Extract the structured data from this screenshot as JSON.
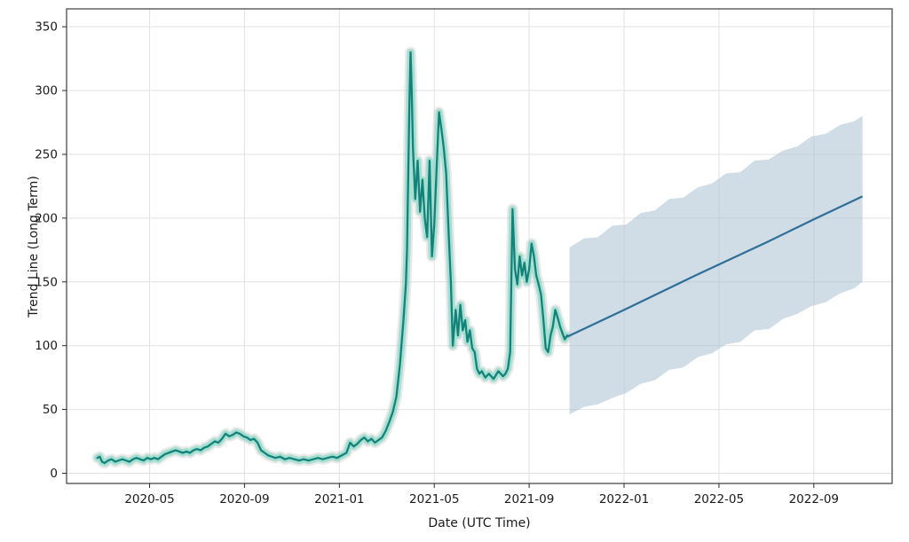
{
  "chart_data": {
    "type": "line",
    "title": "",
    "xlabel": "Date (UTC Time)",
    "ylabel": "Trend Line (Long Term)",
    "x_unit": "months since 2020-01",
    "xlim": [
      0.5,
      35.3
    ],
    "ylim": [
      -8,
      364
    ],
    "grid": true,
    "legend": "none",
    "x_ticks": [
      {
        "m": 4,
        "label": "2020-05"
      },
      {
        "m": 8,
        "label": "2020-09"
      },
      {
        "m": 12,
        "label": "2021-01"
      },
      {
        "m": 16,
        "label": "2021-05"
      },
      {
        "m": 20,
        "label": "2021-09"
      },
      {
        "m": 24,
        "label": "2022-01"
      },
      {
        "m": 28,
        "label": "2022-05"
      },
      {
        "m": 32,
        "label": "2022-09"
      }
    ],
    "y_ticks": [
      0,
      50,
      100,
      150,
      200,
      250,
      300,
      350
    ],
    "style": {
      "background": "#ffffff",
      "grid_color": "#e2e2e2",
      "frame_color": "#2b2b2b",
      "tick_text_color": "#1a1a1a",
      "history_line_color": "#12837a",
      "history_glow_color": "#6fd6bd",
      "history_outer_glow_color": "#c8c8c8",
      "forecast_line_color": "#2e6e99",
      "band_fill_color": "#a9bfd1"
    },
    "series": [
      {
        "name": "history",
        "kind": "line-with-glow",
        "points": [
          [
            1.8,
            12
          ],
          [
            1.9,
            13
          ],
          [
            2.0,
            9
          ],
          [
            2.1,
            8
          ],
          [
            2.25,
            10
          ],
          [
            2.4,
            11
          ],
          [
            2.55,
            9
          ],
          [
            2.7,
            10
          ],
          [
            2.85,
            11
          ],
          [
            3.0,
            10
          ],
          [
            3.15,
            9
          ],
          [
            3.3,
            11
          ],
          [
            3.45,
            12
          ],
          [
            3.6,
            11
          ],
          [
            3.75,
            10
          ],
          [
            3.9,
            12
          ],
          [
            4.05,
            11
          ],
          [
            4.2,
            12
          ],
          [
            4.35,
            11
          ],
          [
            4.5,
            13
          ],
          [
            4.65,
            15
          ],
          [
            4.8,
            16
          ],
          [
            4.95,
            17
          ],
          [
            5.1,
            18
          ],
          [
            5.25,
            17
          ],
          [
            5.4,
            16
          ],
          [
            5.55,
            17
          ],
          [
            5.7,
            16
          ],
          [
            5.85,
            18
          ],
          [
            6.0,
            19
          ],
          [
            6.15,
            18
          ],
          [
            6.3,
            20
          ],
          [
            6.45,
            21
          ],
          [
            6.6,
            23
          ],
          [
            6.75,
            25
          ],
          [
            6.9,
            24
          ],
          [
            7.05,
            27
          ],
          [
            7.2,
            31
          ],
          [
            7.35,
            29
          ],
          [
            7.5,
            30
          ],
          [
            7.65,
            32
          ],
          [
            7.8,
            31
          ],
          [
            7.95,
            29
          ],
          [
            8.1,
            28
          ],
          [
            8.25,
            26
          ],
          [
            8.4,
            27
          ],
          [
            8.55,
            24
          ],
          [
            8.7,
            18
          ],
          [
            8.85,
            16
          ],
          [
            9.0,
            14
          ],
          [
            9.15,
            13
          ],
          [
            9.3,
            12
          ],
          [
            9.5,
            13
          ],
          [
            9.7,
            11
          ],
          [
            9.9,
            12
          ],
          [
            10.1,
            11
          ],
          [
            10.3,
            10
          ],
          [
            10.5,
            11
          ],
          [
            10.7,
            10
          ],
          [
            10.9,
            11
          ],
          [
            11.1,
            12
          ],
          [
            11.3,
            11
          ],
          [
            11.5,
            12
          ],
          [
            11.7,
            13
          ],
          [
            11.9,
            12
          ],
          [
            12.1,
            14
          ],
          [
            12.3,
            16
          ],
          [
            12.45,
            24
          ],
          [
            12.6,
            21
          ],
          [
            12.75,
            23
          ],
          [
            12.9,
            26
          ],
          [
            13.05,
            28
          ],
          [
            13.2,
            25
          ],
          [
            13.35,
            27
          ],
          [
            13.5,
            24
          ],
          [
            13.65,
            26
          ],
          [
            13.8,
            28
          ],
          [
            13.95,
            33
          ],
          [
            14.1,
            40
          ],
          [
            14.25,
            48
          ],
          [
            14.4,
            60
          ],
          [
            14.55,
            85
          ],
          [
            14.7,
            120
          ],
          [
            14.8,
            148
          ],
          [
            14.85,
            175
          ],
          [
            14.9,
            230
          ],
          [
            14.95,
            290
          ],
          [
            15.0,
            330
          ],
          [
            15.05,
            300
          ],
          [
            15.1,
            255
          ],
          [
            15.2,
            215
          ],
          [
            15.3,
            245
          ],
          [
            15.4,
            205
          ],
          [
            15.5,
            230
          ],
          [
            15.6,
            200
          ],
          [
            15.7,
            185
          ],
          [
            15.8,
            245
          ],
          [
            15.9,
            170
          ],
          [
            16.0,
            195
          ],
          [
            16.1,
            240
          ],
          [
            16.2,
            283
          ],
          [
            16.3,
            270
          ],
          [
            16.4,
            255
          ],
          [
            16.5,
            235
          ],
          [
            16.6,
            190
          ],
          [
            16.7,
            150
          ],
          [
            16.78,
            100
          ],
          [
            16.9,
            128
          ],
          [
            17.0,
            108
          ],
          [
            17.1,
            132
          ],
          [
            17.2,
            112
          ],
          [
            17.3,
            120
          ],
          [
            17.4,
            103
          ],
          [
            17.5,
            112
          ],
          [
            17.6,
            98
          ],
          [
            17.7,
            95
          ],
          [
            17.8,
            82
          ],
          [
            17.9,
            78
          ],
          [
            18.0,
            80
          ],
          [
            18.15,
            75
          ],
          [
            18.3,
            78
          ],
          [
            18.5,
            74
          ],
          [
            18.7,
            80
          ],
          [
            18.9,
            76
          ],
          [
            19.0,
            78
          ],
          [
            19.1,
            82
          ],
          [
            19.2,
            95
          ],
          [
            19.3,
            207
          ],
          [
            19.4,
            160
          ],
          [
            19.5,
            148
          ],
          [
            19.6,
            170
          ],
          [
            19.7,
            155
          ],
          [
            19.8,
            165
          ],
          [
            19.9,
            150
          ],
          [
            20.0,
            160
          ],
          [
            20.1,
            180
          ],
          [
            20.2,
            170
          ],
          [
            20.3,
            155
          ],
          [
            20.4,
            148
          ],
          [
            20.5,
            140
          ],
          [
            20.6,
            120
          ],
          [
            20.7,
            98
          ],
          [
            20.8,
            95
          ],
          [
            20.9,
            108
          ],
          [
            21.0,
            115
          ],
          [
            21.1,
            128
          ],
          [
            21.2,
            122
          ],
          [
            21.3,
            115
          ],
          [
            21.4,
            110
          ],
          [
            21.5,
            105
          ],
          [
            21.6,
            108
          ]
        ]
      },
      {
        "name": "forecast",
        "kind": "line",
        "points": [
          [
            21.6,
            107
          ],
          [
            24.0,
            128
          ],
          [
            27.0,
            155
          ],
          [
            30.0,
            181
          ],
          [
            32.0,
            199
          ],
          [
            34.05,
            217
          ]
        ]
      },
      {
        "name": "forecast-confidence-band",
        "kind": "band",
        "lower": [
          [
            21.7,
            46
          ],
          [
            22.3,
            52
          ],
          [
            22.9,
            54
          ],
          [
            23.5,
            59
          ],
          [
            24.1,
            63
          ],
          [
            24.7,
            70
          ],
          [
            25.3,
            73
          ],
          [
            25.9,
            81
          ],
          [
            26.5,
            83
          ],
          [
            27.1,
            91
          ],
          [
            27.7,
            94
          ],
          [
            28.3,
            101
          ],
          [
            28.9,
            103
          ],
          [
            29.5,
            112
          ],
          [
            30.1,
            113
          ],
          [
            30.7,
            121
          ],
          [
            31.3,
            125
          ],
          [
            31.9,
            131
          ],
          [
            32.5,
            134
          ],
          [
            33.1,
            141
          ],
          [
            33.7,
            145
          ],
          [
            34.05,
            150
          ]
        ],
        "upper": [
          [
            21.7,
            177
          ],
          [
            22.3,
            184
          ],
          [
            22.9,
            185
          ],
          [
            23.5,
            194
          ],
          [
            24.1,
            195
          ],
          [
            24.7,
            204
          ],
          [
            25.3,
            206
          ],
          [
            25.9,
            215
          ],
          [
            26.5,
            216
          ],
          [
            27.1,
            224
          ],
          [
            27.7,
            227
          ],
          [
            28.3,
            235
          ],
          [
            28.9,
            236
          ],
          [
            29.5,
            245
          ],
          [
            30.1,
            246
          ],
          [
            30.7,
            253
          ],
          [
            31.3,
            256
          ],
          [
            31.9,
            264
          ],
          [
            32.5,
            266
          ],
          [
            33.1,
            273
          ],
          [
            33.7,
            276
          ],
          [
            34.05,
            280
          ]
        ]
      }
    ]
  }
}
